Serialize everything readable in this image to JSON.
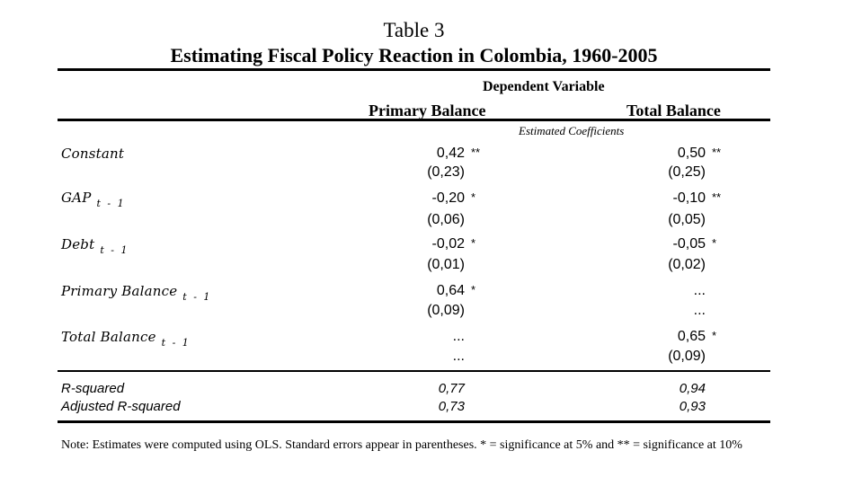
{
  "table": {
    "number": "Table 3",
    "title": "Estimating Fiscal Policy Reaction in Colombia, 1960-2005",
    "dependent_variable_label": "Dependent Variable",
    "columns": [
      "Primary Balance",
      "Total Balance"
    ],
    "subheader": "Estimated Coefficients",
    "rows": [
      {
        "label": "Constant",
        "subscript": "",
        "primary": {
          "coef": "0,42",
          "stars": "**",
          "se": "(0,23)"
        },
        "total": {
          "coef": "0,50",
          "stars": "**",
          "se": "(0,25)"
        }
      },
      {
        "label": "GAP",
        "subscript": "t - 1",
        "primary": {
          "coef": "-0,20",
          "stars": "*",
          "se": "(0,06)"
        },
        "total": {
          "coef": "-0,10",
          "stars": "**",
          "se": "(0,05)"
        }
      },
      {
        "label": "Debt",
        "subscript": "t - 1",
        "primary": {
          "coef": "-0,02",
          "stars": "*",
          "se": "(0,01)"
        },
        "total": {
          "coef": "-0,05",
          "stars": "*",
          "se": "(0,02)"
        }
      },
      {
        "label": "Primary Balance",
        "subscript": "t - 1",
        "primary": {
          "coef": "0,64",
          "stars": "*",
          "se": "(0,09)"
        },
        "total": {
          "coef": "...",
          "stars": "",
          "se": "..."
        }
      },
      {
        "label": "Total Balance",
        "subscript": "t - 1",
        "primary": {
          "coef": "...",
          "stars": "",
          "se": "..."
        },
        "total": {
          "coef": "0,65",
          "stars": "*",
          "se": "(0,09)"
        }
      }
    ],
    "stats": [
      {
        "label": "R-squared",
        "primary": "0,77",
        "total": "0,94"
      },
      {
        "label": "Adjusted R-squared",
        "primary": "0,73",
        "total": "0,93"
      }
    ],
    "note": "Note:   Estimates were computed using OLS. Standard errors appear in parentheses. * = significance at 5% and ** = significance at 10%"
  }
}
